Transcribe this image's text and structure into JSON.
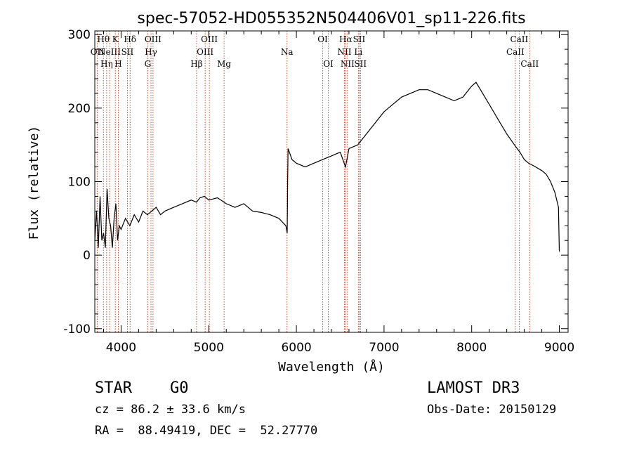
{
  "chart_data": {
    "type": "line",
    "title": "spec-57052-HD055352N504406V01_sp11-226.fits",
    "xlabel": "Wavelength (Å)",
    "ylabel": "Flux (relative)",
    "xlim": [
      3700,
      9100
    ],
    "ylim": [
      -105,
      305
    ],
    "xticks": [
      4000,
      5000,
      6000,
      7000,
      8000,
      9000
    ],
    "yticks": [
      -100,
      0,
      100,
      200,
      300
    ],
    "grid": false,
    "series": [
      {
        "x": [
          3700,
          3720,
          3740,
          3760,
          3780,
          3800,
          3820,
          3840,
          3860,
          3880,
          3900,
          3920,
          3940,
          3960,
          3980,
          4000,
          4050,
          4100,
          4150,
          4200,
          4250,
          4300,
          4350,
          4400,
          4450,
          4500,
          4600,
          4700,
          4800,
          4860,
          4900,
          4950,
          5000,
          5100,
          5200,
          5300,
          5400,
          5500,
          5600,
          5700,
          5800,
          5880,
          5895,
          5900,
          5905,
          5920,
          5950,
          6000,
          6100,
          6200,
          6300,
          6400,
          6500,
          6560,
          6600,
          6700,
          6800,
          6900,
          7000,
          7100,
          7200,
          7300,
          7400,
          7500,
          7600,
          7700,
          7800,
          7900,
          8000,
          8050,
          8100,
          8200,
          8300,
          8400,
          8500,
          8550,
          8600,
          8650,
          8700,
          8800,
          8850,
          8900,
          8950,
          8990,
          9000
        ],
        "values": [
          20,
          60,
          10,
          80,
          20,
          30,
          10,
          90,
          50,
          40,
          10,
          50,
          70,
          20,
          40,
          35,
          50,
          40,
          55,
          45,
          60,
          55,
          60,
          65,
          55,
          60,
          65,
          70,
          75,
          72,
          78,
          80,
          75,
          78,
          70,
          65,
          70,
          60,
          58,
          55,
          50,
          40,
          30,
          100,
          145,
          140,
          130,
          125,
          120,
          125,
          130,
          135,
          140,
          120,
          145,
          150,
          165,
          180,
          195,
          205,
          215,
          220,
          225,
          225,
          220,
          215,
          210,
          215,
          230,
          235,
          225,
          205,
          185,
          165,
          148,
          140,
          130,
          125,
          122,
          115,
          110,
          100,
          85,
          65,
          5
        ]
      }
    ],
    "lines": [
      {
        "w": 3727,
        "label": "OII",
        "row": 2
      },
      {
        "w": 3798,
        "label": "Hθ",
        "row": 1
      },
      {
        "w": 3835,
        "label": "Hη",
        "row": 3
      },
      {
        "w": 3869,
        "label": "NeIII",
        "row": 2
      },
      {
        "w": 3934,
        "label": "K",
        "row": 1
      },
      {
        "w": 3968,
        "label": "H",
        "row": 3
      },
      {
        "w": 4072,
        "label": "SII",
        "row": 2
      },
      {
        "w": 4102,
        "label": "Hδ",
        "row": 1
      },
      {
        "w": 4304,
        "label": "G",
        "row": 3
      },
      {
        "w": 4341,
        "label": "Hγ",
        "row": 2
      },
      {
        "w": 4364,
        "label": "OIII",
        "row": 1
      },
      {
        "w": 4861,
        "label": "Hβ",
        "row": 3
      },
      {
        "w": 4959,
        "label": "OIII",
        "row": 2
      },
      {
        "w": 5007,
        "label": "OIII",
        "row": 1
      },
      {
        "w": 5175,
        "label": "Mg",
        "row": 3
      },
      {
        "w": 5893,
        "label": "Na",
        "row": 2
      },
      {
        "w": 6300,
        "label": "OI",
        "row": 1
      },
      {
        "w": 6364,
        "label": "OI",
        "row": 3
      },
      {
        "w": 6548,
        "label": "NII",
        "row": 2
      },
      {
        "w": 6563,
        "label": "Hα",
        "row": 1
      },
      {
        "w": 6583,
        "label": "NII",
        "row": 3
      },
      {
        "w": 6707,
        "label": "Li",
        "row": 2
      },
      {
        "w": 6716,
        "label": "SII",
        "row": 1
      },
      {
        "w": 6731,
        "label": "SII",
        "row": 3
      },
      {
        "w": 8498,
        "label": "CaII",
        "row": 2
      },
      {
        "w": 8542,
        "label": "CaII",
        "row": 1
      },
      {
        "w": 8662,
        "label": "CaII",
        "row": 3
      }
    ],
    "colors": {
      "spectrum": "#000000",
      "line_marker": "#cc2200",
      "axis": "#000000"
    }
  },
  "info": {
    "class_label": "STAR",
    "subclass": "G0",
    "survey": "LAMOST DR3",
    "cz": "cz = 86.2 ± 33.6 km/s",
    "obs_date": "Obs-Date: 20150129",
    "radec": "RA =  88.49419, DEC =  52.27770"
  }
}
